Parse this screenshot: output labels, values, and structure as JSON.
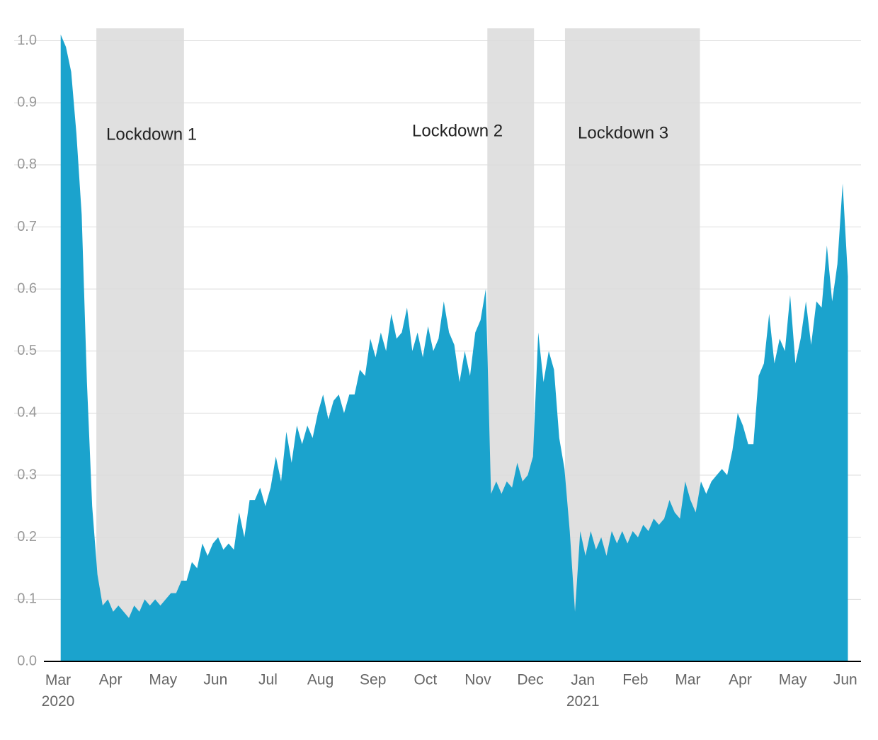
{
  "chart_data": {
    "type": "area",
    "color": "#1ba3cd",
    "grid": true,
    "shade_color": "#e0e0e0",
    "shaded_regions": [
      {
        "label": "Lockdown 1",
        "start": 0.73,
        "end": 2.4
      },
      {
        "label": "Lockdown 2",
        "start": 8.18,
        "end": 9.07
      },
      {
        "label": "Lockdown 3",
        "start": 9.66,
        "end": 12.23
      }
    ],
    "xlim": [
      0,
      15.3
    ],
    "ylim": [
      0,
      1.02
    ],
    "xticks": [
      {
        "value": 0,
        "label": "Mar 2020"
      },
      {
        "value": 1,
        "label": "Apr"
      },
      {
        "value": 2,
        "label": "May"
      },
      {
        "value": 3,
        "label": "Jun"
      },
      {
        "value": 4,
        "label": "Jul"
      },
      {
        "value": 5,
        "label": "Aug"
      },
      {
        "value": 6,
        "label": "Sep"
      },
      {
        "value": 7,
        "label": "Oct"
      },
      {
        "value": 8,
        "label": "Nov"
      },
      {
        "value": 9,
        "label": "Dec"
      },
      {
        "value": 10,
        "label": "Jan 2021"
      },
      {
        "value": 11,
        "label": "Feb"
      },
      {
        "value": 12,
        "label": "Mar"
      },
      {
        "value": 13,
        "label": "Apr"
      },
      {
        "value": 14,
        "label": "May"
      },
      {
        "value": 15,
        "label": "Jun"
      }
    ],
    "yticks": [
      {
        "value": 0,
        "label": "0.0"
      },
      0.1,
      0.2,
      0.3,
      0.4,
      0.5,
      0.6,
      0.7,
      0.8,
      0.9,
      {
        "value": 1,
        "label": "1.0"
      }
    ],
    "x": [
      0.05,
      0.15,
      0.25,
      0.35,
      0.45,
      0.55,
      0.65,
      0.75,
      0.85,
      0.95,
      1.05,
      1.15,
      1.25,
      1.35,
      1.45,
      1.55,
      1.65,
      1.75,
      1.85,
      1.95,
      2.05,
      2.15,
      2.25,
      2.35,
      2.45,
      2.55,
      2.65,
      2.75,
      2.85,
      2.95,
      3.05,
      3.15,
      3.25,
      3.35,
      3.45,
      3.55,
      3.65,
      3.75,
      3.85,
      3.95,
      4.05,
      4.15,
      4.25,
      4.35,
      4.45,
      4.55,
      4.65,
      4.75,
      4.85,
      4.95,
      5.05,
      5.15,
      5.25,
      5.35,
      5.45,
      5.55,
      5.65,
      5.75,
      5.85,
      5.95,
      6.05,
      6.15,
      6.25,
      6.35,
      6.45,
      6.55,
      6.65,
      6.75,
      6.85,
      6.95,
      7.05,
      7.15,
      7.25,
      7.35,
      7.45,
      7.55,
      7.65,
      7.75,
      7.85,
      7.95,
      8.05,
      8.15,
      8.25,
      8.35,
      8.45,
      8.55,
      8.65,
      8.75,
      8.85,
      8.95,
      9.05,
      9.15,
      9.25,
      9.35,
      9.45,
      9.55,
      9.65,
      9.75,
      9.85,
      9.95,
      10.05,
      10.15,
      10.25,
      10.35,
      10.45,
      10.55,
      10.65,
      10.75,
      10.85,
      10.95,
      11.05,
      11.15,
      11.25,
      11.35,
      11.45,
      11.55,
      11.65,
      11.75,
      11.85,
      11.95,
      12.05,
      12.15,
      12.25,
      12.35,
      12.45,
      12.55,
      12.65,
      12.75,
      12.85,
      12.95,
      13.05,
      13.15,
      13.25,
      13.35,
      13.45,
      13.55,
      13.65,
      13.75,
      13.85,
      13.95,
      14.05,
      14.15,
      14.25,
      14.35,
      14.45,
      14.55,
      14.65,
      14.75,
      14.85,
      14.95,
      15.05
    ],
    "values": [
      1.01,
      0.99,
      0.95,
      0.85,
      0.72,
      0.45,
      0.25,
      0.14,
      0.09,
      0.1,
      0.08,
      0.09,
      0.08,
      0.07,
      0.09,
      0.08,
      0.1,
      0.09,
      0.1,
      0.09,
      0.1,
      0.11,
      0.11,
      0.13,
      0.13,
      0.16,
      0.15,
      0.19,
      0.17,
      0.19,
      0.2,
      0.18,
      0.19,
      0.18,
      0.24,
      0.2,
      0.26,
      0.26,
      0.28,
      0.25,
      0.28,
      0.33,
      0.29,
      0.37,
      0.32,
      0.38,
      0.35,
      0.38,
      0.36,
      0.4,
      0.43,
      0.39,
      0.42,
      0.43,
      0.4,
      0.43,
      0.43,
      0.47,
      0.46,
      0.52,
      0.49,
      0.53,
      0.5,
      0.56,
      0.52,
      0.53,
      0.57,
      0.5,
      0.53,
      0.49,
      0.54,
      0.5,
      0.52,
      0.58,
      0.53,
      0.51,
      0.45,
      0.5,
      0.46,
      0.53,
      0.55,
      0.6,
      0.27,
      0.29,
      0.27,
      0.29,
      0.28,
      0.32,
      0.29,
      0.3,
      0.33,
      0.53,
      0.45,
      0.5,
      0.47,
      0.36,
      0.31,
      0.21,
      0.08,
      0.21,
      0.17,
      0.21,
      0.18,
      0.2,
      0.17,
      0.21,
      0.19,
      0.21,
      0.19,
      0.21,
      0.2,
      0.22,
      0.21,
      0.23,
      0.22,
      0.23,
      0.26,
      0.24,
      0.23,
      0.29,
      0.26,
      0.24,
      0.29,
      0.27,
      0.29,
      0.3,
      0.31,
      0.3,
      0.34,
      0.4,
      0.38,
      0.35,
      0.35,
      0.46,
      0.48,
      0.56,
      0.48,
      0.52,
      0.5,
      0.59,
      0.48,
      0.52,
      0.58,
      0.51,
      0.58,
      0.57,
      0.67,
      0.58,
      0.64,
      0.77,
      0.62
    ]
  }
}
